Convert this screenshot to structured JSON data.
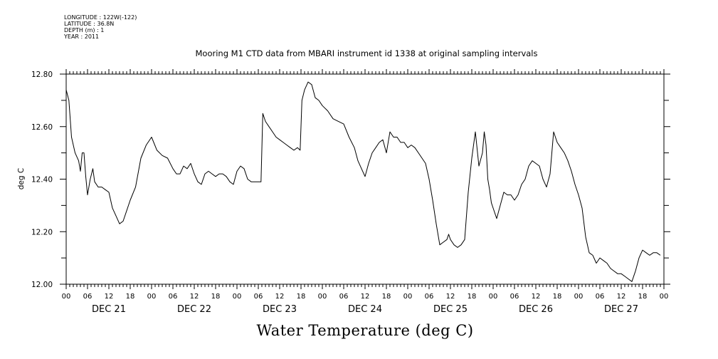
{
  "header": {
    "meta_lines": [
      "LONGITUDE : 122W(-122)",
      "LATITUDE : 36.8N",
      "DEPTH (m) : 1",
      "YEAR : 2011"
    ],
    "title": "Mooring M1 CTD data from MBARI instrument id 1338 at original sampling intervals"
  },
  "chart_data": {
    "type": "line",
    "title": "Mooring M1 CTD data from MBARI instrument id 1338 at original sampling intervals",
    "xlabel": "Water Temperature (deg C)",
    "ylabel": "deg C",
    "xlim": [
      "2011-12-21 00:00",
      "2011-12-28 00:00"
    ],
    "ylim": [
      12.0,
      12.8
    ],
    "yticks": [
      12.0,
      12.2,
      12.4,
      12.6,
      12.8
    ],
    "ytick_labels": [
      "12.00",
      "12.20",
      "12.40",
      "12.60",
      "12.80"
    ],
    "xtick_labels": [
      "00",
      "06",
      "12",
      "18",
      "00",
      "06",
      "12",
      "18",
      "00",
      "06",
      "12",
      "18",
      "00",
      "06",
      "12",
      "18",
      "00",
      "06",
      "12",
      "18",
      "00",
      "06",
      "12",
      "18",
      "00",
      "06",
      "12",
      "18",
      "00"
    ],
    "day_labels": [
      "DEC 21",
      "DEC 22",
      "DEC 23",
      "DEC 24",
      "DEC 25",
      "DEC 26",
      "DEC 27"
    ],
    "grid": false,
    "series": [
      {
        "x": [
          "2011-12-21 00:00",
          "2011-12-21 00:45",
          "2011-12-21 01:30",
          "2011-12-21 02:30",
          "2011-12-21 03:30",
          "2011-12-21 04:00",
          "2011-12-21 04:30",
          "2011-12-21 05:00",
          "2011-12-21 05:30",
          "2011-12-21 06:00",
          "2011-12-21 06:45",
          "2011-12-21 07:30",
          "2011-12-21 08:00",
          "2011-12-21 09:00",
          "2011-12-21 10:00",
          "2011-12-21 11:00",
          "2011-12-21 12:00",
          "2011-12-21 13:00",
          "2011-12-21 14:00",
          "2011-12-21 15:00",
          "2011-12-21 16:00",
          "2011-12-21 17:00",
          "2011-12-21 18:00",
          "2011-12-21 19:30",
          "2011-12-21 21:00",
          "2011-12-21 22:30",
          "2011-12-22 00:00",
          "2011-12-22 01:30",
          "2011-12-22 03:00",
          "2011-12-22 04:30",
          "2011-12-22 06:00",
          "2011-12-22 07:00",
          "2011-12-22 08:00",
          "2011-12-22 09:00",
          "2011-12-22 10:00",
          "2011-12-22 11:00",
          "2011-12-22 12:00",
          "2011-12-22 13:00",
          "2011-12-22 14:00",
          "2011-12-22 15:00",
          "2011-12-22 16:00",
          "2011-12-22 17:00",
          "2011-12-22 18:00",
          "2011-12-22 19:00",
          "2011-12-22 20:00",
          "2011-12-22 21:00",
          "2011-12-22 22:00",
          "2011-12-22 23:00",
          "2011-12-23 00:00",
          "2011-12-23 01:00",
          "2011-12-23 02:00",
          "2011-12-23 03:00",
          "2011-12-23 04:00",
          "2011-12-23 05:00",
          "2011-12-23 06:00",
          "2011-12-23 06:45",
          "2011-12-23 07:15",
          "2011-12-23 08:00",
          "2011-12-23 09:00",
          "2011-12-23 10:00",
          "2011-12-23 11:00",
          "2011-12-23 12:00",
          "2011-12-23 13:00",
          "2011-12-23 14:00",
          "2011-12-23 15:00",
          "2011-12-23 16:00",
          "2011-12-23 17:00",
          "2011-12-23 17:45",
          "2011-12-23 18:15",
          "2011-12-23 19:00",
          "2011-12-23 20:00",
          "2011-12-23 21:00",
          "2011-12-23 22:00",
          "2011-12-23 23:00",
          "2011-12-24 00:00",
          "2011-12-24 01:30",
          "2011-12-24 03:00",
          "2011-12-24 04:30",
          "2011-12-24 06:00",
          "2011-12-24 07:30",
          "2011-12-24 09:00",
          "2011-12-24 10:00",
          "2011-12-24 11:00",
          "2011-12-24 12:00",
          "2011-12-24 13:00",
          "2011-12-24 14:00",
          "2011-12-24 15:00",
          "2011-12-24 16:00",
          "2011-12-24 17:00",
          "2011-12-24 18:00",
          "2011-12-24 19:00",
          "2011-12-24 20:00",
          "2011-12-24 21:00",
          "2011-12-24 22:00",
          "2011-12-24 23:00",
          "2011-12-25 00:00",
          "2011-12-25 01:00",
          "2011-12-25 02:00",
          "2011-12-25 03:00",
          "2011-12-25 04:00",
          "2011-12-25 05:00",
          "2011-12-25 06:00",
          "2011-12-25 07:00",
          "2011-12-25 08:00",
          "2011-12-25 09:00",
          "2011-12-25 10:00",
          "2011-12-25 11:00",
          "2011-12-25 11:30",
          "2011-12-25 12:00",
          "2011-12-25 13:00",
          "2011-12-25 14:00",
          "2011-12-25 15:00",
          "2011-12-25 16:00",
          "2011-12-25 17:00",
          "2011-12-25 18:00",
          "2011-12-25 19:00",
          "2011-12-25 20:00",
          "2011-12-25 21:00",
          "2011-12-25 21:30",
          "2011-12-25 22:00",
          "2011-12-25 22:30",
          "2011-12-25 23:00",
          "2011-12-25 23:30",
          "2011-12-26 00:00",
          "2011-12-26 01:00",
          "2011-12-26 02:00",
          "2011-12-26 03:00",
          "2011-12-26 04:00",
          "2011-12-26 05:00",
          "2011-12-26 06:00",
          "2011-12-26 07:00",
          "2011-12-26 08:00",
          "2011-12-26 09:00",
          "2011-12-26 10:00",
          "2011-12-26 11:00",
          "2011-12-26 12:00",
          "2011-12-26 13:00",
          "2011-12-26 14:00",
          "2011-12-26 15:00",
          "2011-12-26 16:00",
          "2011-12-26 17:00",
          "2011-12-26 18:00",
          "2011-12-26 19:00",
          "2011-12-26 20:00",
          "2011-12-26 21:00",
          "2011-12-26 22:00",
          "2011-12-26 23:00",
          "2011-12-27 00:00",
          "2011-12-27 01:00",
          "2011-12-27 02:00",
          "2011-12-27 03:00",
          "2011-12-27 04:00",
          "2011-12-27 05:00",
          "2011-12-27 06:00",
          "2011-12-27 07:00",
          "2011-12-27 08:00",
          "2011-12-27 09:00",
          "2011-12-27 10:00",
          "2011-12-27 11:00",
          "2011-12-27 12:00",
          "2011-12-27 13:00",
          "2011-12-27 14:00",
          "2011-12-27 15:00",
          "2011-12-27 16:00",
          "2011-12-27 17:00",
          "2011-12-27 18:00",
          "2011-12-27 19:00",
          "2011-12-27 20:00",
          "2011-12-27 21:00",
          "2011-12-27 22:00",
          "2011-12-27 23:00"
        ],
        "values": [
          12.74,
          12.7,
          12.56,
          12.5,
          12.47,
          12.43,
          12.5,
          12.5,
          12.41,
          12.34,
          12.4,
          12.44,
          12.39,
          12.37,
          12.37,
          12.36,
          12.35,
          12.29,
          12.26,
          12.23,
          12.24,
          12.28,
          12.32,
          12.37,
          12.48,
          12.53,
          12.56,
          12.51,
          12.49,
          12.48,
          12.44,
          12.42,
          12.42,
          12.45,
          12.44,
          12.46,
          12.42,
          12.39,
          12.38,
          12.42,
          12.43,
          12.42,
          12.41,
          12.42,
          12.42,
          12.41,
          12.39,
          12.38,
          12.43,
          12.45,
          12.44,
          12.4,
          12.39,
          12.39,
          12.39,
          12.39,
          12.65,
          12.62,
          12.6,
          12.58,
          12.56,
          12.55,
          12.54,
          12.53,
          12.52,
          12.51,
          12.52,
          12.51,
          12.7,
          12.74,
          12.77,
          12.76,
          12.71,
          12.7,
          12.68,
          12.66,
          12.63,
          12.62,
          12.61,
          12.56,
          12.52,
          12.47,
          12.44,
          12.41,
          12.46,
          12.5,
          12.52,
          12.54,
          12.55,
          12.5,
          12.58,
          12.56,
          12.56,
          12.54,
          12.54,
          12.52,
          12.53,
          12.52,
          12.5,
          12.48,
          12.46,
          12.4,
          12.32,
          12.23,
          12.15,
          12.16,
          12.17,
          12.19,
          12.17,
          12.15,
          12.14,
          12.15,
          12.17,
          12.35,
          12.48,
          12.58,
          12.45,
          12.5,
          12.58,
          12.53,
          12.4,
          12.36,
          12.31,
          12.29,
          12.25,
          12.3,
          12.35,
          12.34,
          12.34,
          12.32,
          12.34,
          12.38,
          12.4,
          12.45,
          12.47,
          12.46,
          12.45,
          12.4,
          12.37,
          12.42,
          12.58,
          12.54,
          12.52,
          12.5,
          12.47,
          12.43,
          12.38,
          12.34,
          12.29,
          12.18,
          12.12,
          12.11,
          12.08,
          12.1,
          12.09,
          12.08,
          12.06,
          12.05,
          12.04,
          12.04,
          12.03,
          12.02,
          12.01,
          12.05,
          12.1,
          12.13,
          12.12,
          12.11,
          12.12,
          12.12,
          12.11
        ]
      }
    ]
  }
}
